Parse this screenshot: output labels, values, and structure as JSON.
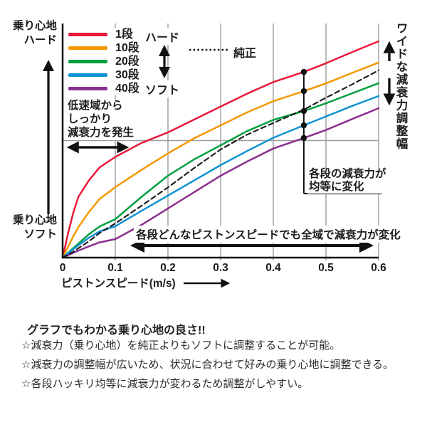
{
  "chart": {
    "y_axis_top_label": "乗り心地\nハード",
    "y_axis_bottom_label": "乗り心地\nソフト",
    "x_axis_label": "ピストンスピード(m/s)",
    "legend": {
      "hard_label": "ハード",
      "soft_label": "ソフト",
      "stock_label": "純正",
      "entries": [
        {
          "label": "1段",
          "color": "#e81a3c"
        },
        {
          "label": "10段",
          "color": "#f39800"
        },
        {
          "label": "20段",
          "color": "#00a040"
        },
        {
          "label": "30段",
          "color": "#1092d2"
        },
        {
          "label": "40段",
          "color": "#8b2f90"
        }
      ]
    },
    "annotations": {
      "low_speed": "低速域から\nしっかり\n減衰力を発生",
      "equal_change": "各段の減衰力が\n均等に変化",
      "full_range": "各段どんなピストンスピードでも全域で減衰力が変化",
      "wide_range": "ワイドな減衰力調整幅"
    }
  },
  "chart_data": {
    "type": "line",
    "xlabel": "ピストンスピード(m/s)",
    "y_axis_top": "乗り心地ハード",
    "y_axis_bottom": "乗り心地ソフト",
    "xlim": [
      0,
      0.6
    ],
    "ylim": [
      0,
      1
    ],
    "x_tick_values": [
      0,
      0.1,
      0.2,
      0.3,
      0.4,
      0.5,
      0.6
    ],
    "x_tick_labels": [
      "0",
      "0.1",
      "0.2",
      "0.3",
      "0.4",
      "0.5",
      "0.6"
    ],
    "x_gridlines": [
      0.1,
      0.2,
      0.3,
      0.4,
      0.5,
      0.6
    ],
    "y_gridlines": [
      0.5
    ],
    "legend_position": "top-left",
    "series": [
      {
        "name": "1段",
        "key": "step-1",
        "color": "#e81a3c",
        "dash": false,
        "points": [
          [
            0,
            0
          ],
          [
            0.01,
            0.1
          ],
          [
            0.02,
            0.19
          ],
          [
            0.03,
            0.26
          ],
          [
            0.05,
            0.33
          ],
          [
            0.07,
            0.385
          ],
          [
            0.1,
            0.43
          ],
          [
            0.15,
            0.49
          ],
          [
            0.2,
            0.535
          ],
          [
            0.25,
            0.59
          ],
          [
            0.3,
            0.645
          ],
          [
            0.35,
            0.7
          ],
          [
            0.4,
            0.75
          ],
          [
            0.458,
            0.793
          ],
          [
            0.5,
            0.83
          ],
          [
            0.55,
            0.878
          ],
          [
            0.6,
            0.924
          ]
        ]
      },
      {
        "name": "10段",
        "key": "step-10",
        "color": "#f39800",
        "dash": false,
        "points": [
          [
            0,
            0
          ],
          [
            0.01,
            0.045
          ],
          [
            0.02,
            0.09
          ],
          [
            0.03,
            0.13
          ],
          [
            0.05,
            0.195
          ],
          [
            0.07,
            0.25
          ],
          [
            0.1,
            0.301
          ],
          [
            0.15,
            0.375
          ],
          [
            0.2,
            0.445
          ],
          [
            0.25,
            0.51
          ],
          [
            0.3,
            0.565
          ],
          [
            0.35,
            0.62
          ],
          [
            0.4,
            0.668
          ],
          [
            0.458,
            0.711
          ],
          [
            0.5,
            0.744
          ],
          [
            0.55,
            0.789
          ],
          [
            0.6,
            0.833
          ]
        ]
      },
      {
        "name": "20段",
        "key": "step-20",
        "color": "#00a040",
        "dash": false,
        "points": [
          [
            0,
            0
          ],
          [
            0.01,
            0.02
          ],
          [
            0.02,
            0.04
          ],
          [
            0.03,
            0.06
          ],
          [
            0.05,
            0.1
          ],
          [
            0.07,
            0.133
          ],
          [
            0.1,
            0.164
          ],
          [
            0.15,
            0.26
          ],
          [
            0.2,
            0.35
          ],
          [
            0.25,
            0.42
          ],
          [
            0.3,
            0.48
          ],
          [
            0.35,
            0.54
          ],
          [
            0.4,
            0.588
          ],
          [
            0.458,
            0.626
          ],
          [
            0.5,
            0.659
          ],
          [
            0.55,
            0.702
          ],
          [
            0.6,
            0.745
          ]
        ]
      },
      {
        "name": "30段",
        "key": "step-30",
        "color": "#1092d2",
        "dash": false,
        "points": [
          [
            0,
            0
          ],
          [
            0.01,
            0.018
          ],
          [
            0.02,
            0.036
          ],
          [
            0.03,
            0.053
          ],
          [
            0.05,
            0.085
          ],
          [
            0.07,
            0.112
          ],
          [
            0.1,
            0.134
          ],
          [
            0.15,
            0.2
          ],
          [
            0.2,
            0.265
          ],
          [
            0.25,
            0.33
          ],
          [
            0.3,
            0.395
          ],
          [
            0.35,
            0.455
          ],
          [
            0.4,
            0.512
          ],
          [
            0.458,
            0.565
          ],
          [
            0.5,
            0.603
          ],
          [
            0.55,
            0.648
          ],
          [
            0.6,
            0.69
          ]
        ]
      },
      {
        "name": "40段",
        "key": "step-40",
        "color": "#8b2f90",
        "dash": false,
        "points": [
          [
            0,
            0
          ],
          [
            0.01,
            0.01
          ],
          [
            0.02,
            0.02
          ],
          [
            0.03,
            0.03
          ],
          [
            0.05,
            0.048
          ],
          [
            0.07,
            0.065
          ],
          [
            0.1,
            0.079
          ],
          [
            0.15,
            0.14
          ],
          [
            0.2,
            0.21
          ],
          [
            0.25,
            0.28
          ],
          [
            0.3,
            0.35
          ],
          [
            0.35,
            0.41
          ],
          [
            0.4,
            0.466
          ],
          [
            0.458,
            0.511
          ],
          [
            0.5,
            0.545
          ],
          [
            0.55,
            0.592
          ],
          [
            0.6,
            0.638
          ]
        ]
      },
      {
        "name": "純正",
        "key": "stock",
        "color": "#1a1a1a",
        "dash": true,
        "points": [
          [
            0,
            0
          ],
          [
            0.01,
            0.012
          ],
          [
            0.02,
            0.025
          ],
          [
            0.03,
            0.04
          ],
          [
            0.05,
            0.07
          ],
          [
            0.07,
            0.105
          ],
          [
            0.1,
            0.146
          ],
          [
            0.15,
            0.222
          ],
          [
            0.2,
            0.3
          ],
          [
            0.25,
            0.383
          ],
          [
            0.3,
            0.462
          ],
          [
            0.35,
            0.525
          ],
          [
            0.4,
            0.575
          ],
          [
            0.458,
            0.632
          ],
          [
            0.5,
            0.683
          ],
          [
            0.55,
            0.74
          ],
          [
            0.6,
            0.8
          ]
        ]
      }
    ],
    "marker": {
      "x": 0.458,
      "dot_values": [
        0.793,
        0.711,
        0.626,
        0.565,
        0.511
      ],
      "label": "各段の減衰力が均等に変化"
    }
  },
  "footer": {
    "heading": "グラフでもわかる乗り心地の良さ!!",
    "bullets": [
      "☆減衰力（乗り心地）を純正よりもソフトに調整することが可能。",
      "☆減衰力の調整幅が広いため、状況に合わせて好みの乗り心地に調整できる。",
      "☆各段ハッキリ均等に減衰力が変わるため調整がしやすい。"
    ]
  }
}
